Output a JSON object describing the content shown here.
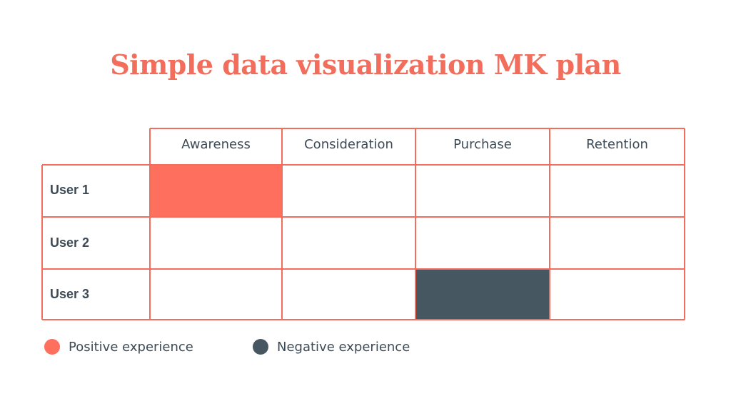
{
  "title": "Simple data visualization MK plan",
  "colors": {
    "grid_line": "#f26d5b",
    "positive": "#fe6f5e",
    "negative": "#475761",
    "title": "#f26d5b",
    "text": "#3d4a55"
  },
  "chart_data": {
    "type": "heatmap",
    "title": "Simple data visualization MK plan",
    "columns": [
      "Awareness",
      "Consideration",
      "Purchase",
      "Retention"
    ],
    "rows": [
      "User 1",
      "User 2",
      "User 3"
    ],
    "cells": [
      [
        "positive",
        "",
        "",
        ""
      ],
      [
        "",
        "",
        "",
        ""
      ],
      [
        "",
        "",
        "negative",
        ""
      ]
    ],
    "legend": [
      {
        "key": "positive",
        "label": "Positive experience",
        "color": "#fe6f5e"
      },
      {
        "key": "negative",
        "label": "Negative experience",
        "color": "#475761"
      }
    ],
    "legend_position": "bottom-left"
  }
}
